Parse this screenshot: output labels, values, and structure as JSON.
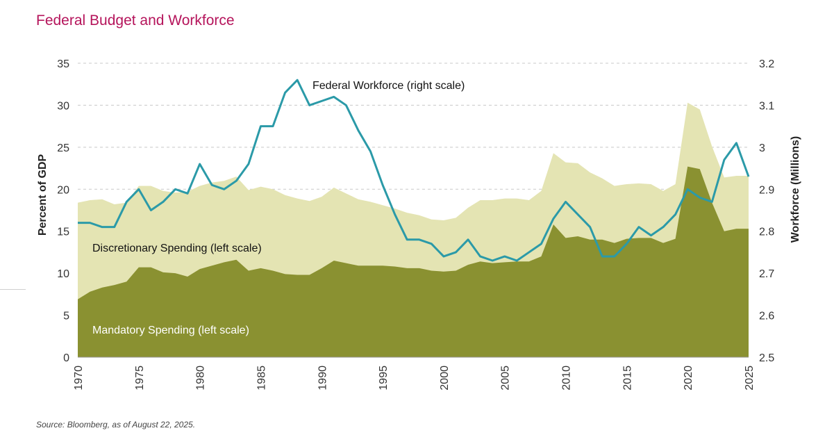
{
  "title": "Federal Budget and Workforce",
  "source": "Source: Bloomberg, as of August 22, 2025.",
  "colors": {
    "title": "#b5145b",
    "mandatory": "#8a9131",
    "discretionary": "#e4e4b3",
    "workforce": "#2b9aa8"
  },
  "chart_data": {
    "type": "area",
    "title": "Federal Budget and Workforce",
    "x_range": [
      1970,
      2025
    ],
    "x_ticks": [
      "1970",
      "1975",
      "1980",
      "1985",
      "1990",
      "1995",
      "2000",
      "2005",
      "2010",
      "2015",
      "2020",
      "2025"
    ],
    "left_axis": {
      "label": "Percent of GDP",
      "range": [
        0,
        35
      ],
      "ticks": [
        "0",
        "5",
        "10",
        "15",
        "20",
        "25",
        "30",
        "35"
      ]
    },
    "right_axis": {
      "label": "Workforce (Millions)",
      "range": [
        2.5,
        3.2
      ],
      "ticks": [
        "2.5",
        "2.6",
        "2.7",
        "2.8",
        "2.9",
        "3",
        "3.1",
        "3.2"
      ]
    },
    "grid": "horizontal dashed",
    "annotations": {
      "workforce": "Federal Workforce (right scale)",
      "discretionary": "Discretionary Spending (left scale)",
      "mandatory": "Mandatory Spending (left scale)"
    },
    "years": [
      1970,
      1971,
      1972,
      1973,
      1974,
      1975,
      1976,
      1977,
      1978,
      1979,
      1980,
      1981,
      1982,
      1983,
      1984,
      1985,
      1986,
      1987,
      1988,
      1989,
      1990,
      1991,
      1992,
      1993,
      1994,
      1995,
      1996,
      1997,
      1998,
      1999,
      2000,
      2001,
      2002,
      2003,
      2004,
      2005,
      2006,
      2007,
      2008,
      2009,
      2010,
      2011,
      2012,
      2013,
      2014,
      2015,
      2016,
      2017,
      2018,
      2019,
      2020,
      2021,
      2022,
      2023,
      2024,
      2025
    ],
    "series": [
      {
        "name": "Mandatory Spending",
        "axis": "left",
        "values": [
          6.9,
          7.8,
          8.3,
          8.6,
          9.0,
          10.7,
          10.7,
          10.1,
          10.0,
          9.6,
          10.5,
          10.9,
          11.3,
          11.6,
          10.3,
          10.6,
          10.3,
          9.9,
          9.8,
          9.8,
          10.6,
          11.5,
          11.2,
          10.9,
          10.9,
          10.9,
          10.8,
          10.6,
          10.6,
          10.3,
          10.2,
          10.3,
          11.0,
          11.4,
          11.2,
          11.3,
          11.4,
          11.4,
          12.0,
          15.8,
          14.2,
          14.4,
          14.0,
          14.0,
          13.6,
          14.1,
          14.2,
          14.2,
          13.6,
          14.1,
          22.7,
          22.4,
          18.4,
          15.0,
          15.3,
          15.3
        ]
      },
      {
        "name": "Discretionary Spending",
        "axis": "left",
        "stack_total": true,
        "values": [
          18.4,
          18.7,
          18.8,
          18.2,
          18.4,
          20.4,
          20.4,
          19.8,
          19.6,
          19.7,
          20.4,
          20.8,
          21.0,
          21.5,
          19.9,
          20.3,
          20.0,
          19.3,
          18.9,
          18.6,
          19.1,
          20.2,
          19.5,
          18.8,
          18.5,
          18.1,
          17.7,
          17.2,
          16.9,
          16.4,
          16.3,
          16.6,
          17.8,
          18.7,
          18.7,
          18.9,
          18.9,
          18.7,
          19.8,
          24.3,
          23.2,
          23.1,
          22.0,
          21.3,
          20.4,
          20.6,
          20.7,
          20.6,
          19.8,
          20.6,
          30.3,
          29.5,
          25.1,
          21.4,
          21.6,
          21.6
        ]
      },
      {
        "name": "Federal Workforce",
        "axis": "right",
        "values": [
          2.82,
          2.82,
          2.81,
          2.81,
          2.87,
          2.9,
          2.85,
          2.87,
          2.9,
          2.89,
          2.96,
          2.91,
          2.9,
          2.92,
          2.96,
          3.05,
          3.05,
          3.13,
          3.16,
          3.1,
          3.11,
          3.12,
          3.1,
          3.04,
          2.99,
          2.91,
          2.84,
          2.78,
          2.78,
          2.77,
          2.74,
          2.75,
          2.78,
          2.74,
          2.73,
          2.74,
          2.73,
          2.75,
          2.77,
          2.83,
          2.87,
          2.84,
          2.81,
          2.74,
          2.74,
          2.77,
          2.81,
          2.79,
          2.81,
          2.84,
          2.9,
          2.88,
          2.87,
          2.97,
          3.01,
          2.93
        ]
      }
    ]
  }
}
